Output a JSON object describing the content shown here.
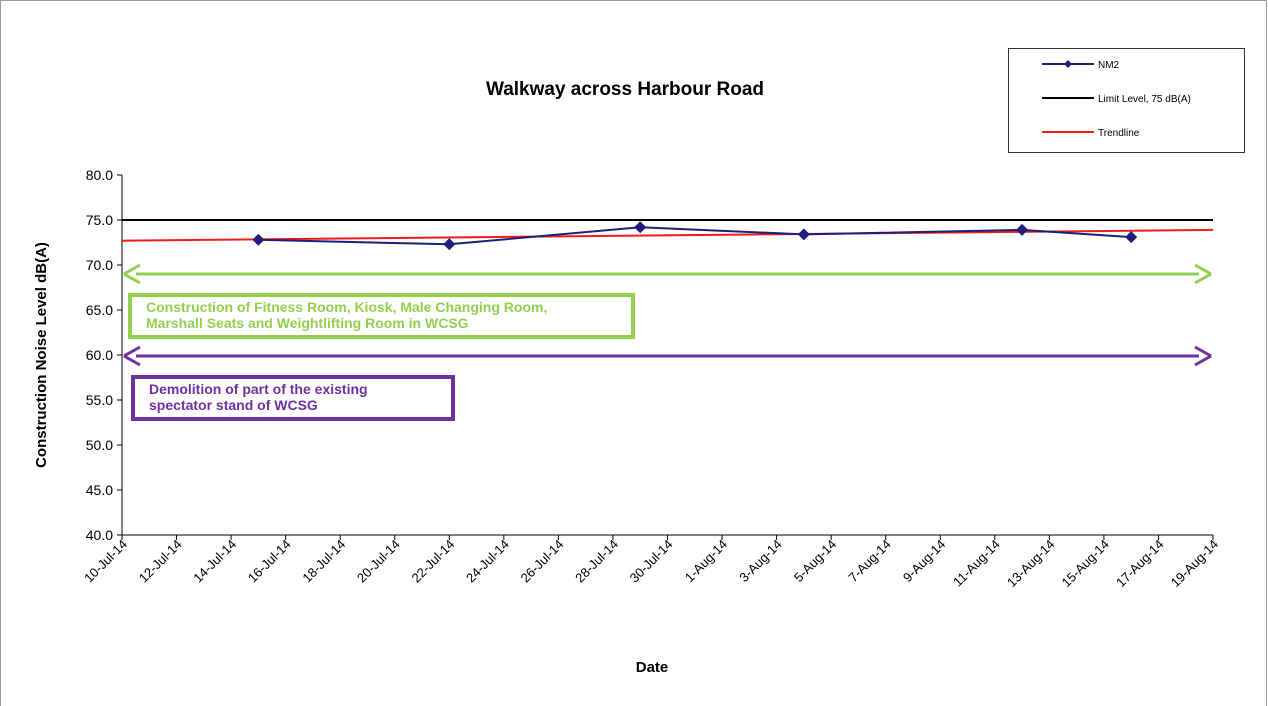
{
  "chart_data": {
    "type": "line",
    "title": "Walkway across Harbour Road",
    "x_label": "Date",
    "y_label": "Construction Noise Level  dB(A)",
    "xlim": [
      "10-Jul-14",
      "19-Aug-14"
    ],
    "xticks": [
      "10-Jul-14",
      "12-Jul-14",
      "14-Jul-14",
      "16-Jul-14",
      "18-Jul-14",
      "20-Jul-14",
      "22-Jul-14",
      "24-Jul-14",
      "26-Jul-14",
      "28-Jul-14",
      "30-Jul-14",
      "1-Aug-14",
      "3-Aug-14",
      "5-Aug-14",
      "7-Aug-14",
      "9-Aug-14",
      "11-Aug-14",
      "13-Aug-14",
      "15-Aug-14",
      "17-Aug-14",
      "19-Aug-14"
    ],
    "ylim": [
      40,
      80
    ],
    "yticks": [
      {
        "value": 40,
        "label": "40.0"
      },
      {
        "value": 45,
        "label": "45.0"
      },
      {
        "value": 50,
        "label": "50.0"
      },
      {
        "value": 55,
        "label": "55.0"
      },
      {
        "value": 60,
        "label": "60.0"
      },
      {
        "value": 65,
        "label": "65.0"
      },
      {
        "value": 70,
        "label": "70.0"
      },
      {
        "value": 75,
        "label": "75.0"
      },
      {
        "value": 80,
        "label": "80.0"
      }
    ],
    "series": [
      {
        "name": "NM2",
        "color": "#1f1f7a",
        "marker": "diamond",
        "x": [
          "15-Jul-14",
          "22-Jul-14",
          "29-Jul-14",
          "4-Aug-14",
          "12-Aug-14",
          "16-Aug-14"
        ],
        "values": [
          72.8,
          72.3,
          74.2,
          73.4,
          73.9,
          73.1
        ]
      },
      {
        "name": "Limit Level, 75 dB(A)",
        "color": "#000000",
        "x": [
          "10-Jul-14",
          "19-Aug-14"
        ],
        "values": [
          75,
          75
        ]
      },
      {
        "name": "Trendline",
        "color": "#ee1c1c",
        "x": [
          "10-Jul-14",
          "19-Aug-14"
        ],
        "values": [
          72.7,
          73.9
        ]
      }
    ],
    "annotations": [
      {
        "text": "Construction of Fitness Room, Kiosk, Male Changing Room, Marshall Seats and Weightlifting Room in WCSG",
        "color": "#92d050"
      },
      {
        "text": "Demolition of part of the existing spectator stand of WCSG",
        "color": "#7030a0"
      }
    ]
  }
}
